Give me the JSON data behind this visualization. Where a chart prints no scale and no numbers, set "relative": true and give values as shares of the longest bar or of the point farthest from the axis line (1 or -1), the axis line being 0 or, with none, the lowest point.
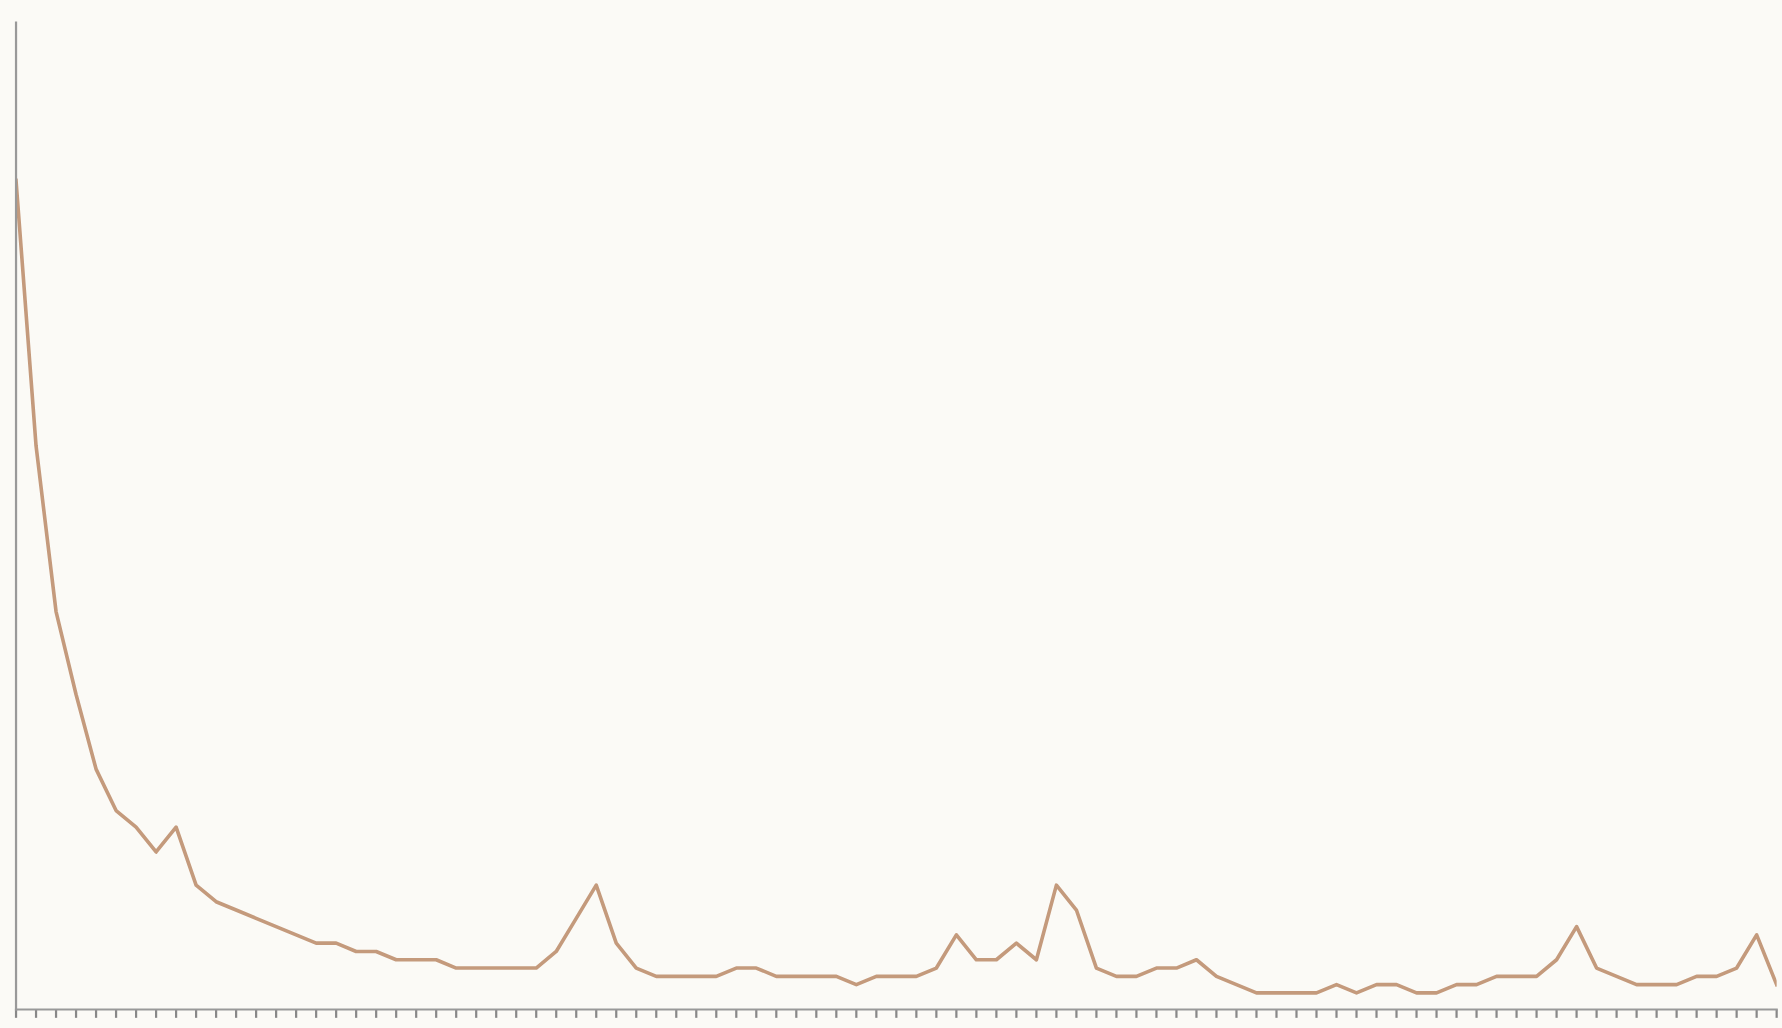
{
  "chart_data": {
    "type": "line",
    "relative": true,
    "color": "#c49a7c",
    "categories": [
      null,
      null,
      null,
      null,
      null,
      null,
      null,
      null,
      null,
      null,
      null,
      null,
      null,
      null,
      null,
      null,
      null,
      null,
      null,
      null,
      null,
      null,
      null,
      null,
      null,
      null,
      null,
      null,
      null,
      null,
      null,
      null,
      null,
      null,
      null,
      null,
      null,
      null,
      null,
      null,
      null,
      null,
      null,
      null,
      null,
      null,
      null,
      null,
      null,
      null,
      null,
      null,
      null,
      null,
      null,
      null,
      null,
      null,
      null,
      null,
      null,
      null,
      null,
      null,
      null,
      null,
      null,
      null,
      null,
      null,
      null,
      null,
      null,
      null,
      null,
      null,
      null,
      null,
      null,
      null,
      null,
      null,
      null,
      null,
      null,
      null,
      null,
      null,
      null
    ],
    "values": [
      1.0,
      0.68,
      0.48,
      0.38,
      0.29,
      0.24,
      0.22,
      0.19,
      0.22,
      0.15,
      0.13,
      0.12,
      0.11,
      0.1,
      0.09,
      0.08,
      0.08,
      0.07,
      0.07,
      0.06,
      0.06,
      0.06,
      0.05,
      0.05,
      0.05,
      0.05,
      0.05,
      0.07,
      0.11,
      0.15,
      0.08,
      0.05,
      0.04,
      0.04,
      0.04,
      0.04,
      0.05,
      0.05,
      0.04,
      0.04,
      0.04,
      0.04,
      0.03,
      0.04,
      0.04,
      0.04,
      0.05,
      0.09,
      0.06,
      0.06,
      0.08,
      0.06,
      0.15,
      0.12,
      0.05,
      0.04,
      0.04,
      0.05,
      0.05,
      0.06,
      0.04,
      0.03,
      0.02,
      0.02,
      0.02,
      0.02,
      0.03,
      0.02,
      0.03,
      0.03,
      0.02,
      0.02,
      0.03,
      0.03,
      0.04,
      0.04,
      0.04,
      0.06,
      0.1,
      0.05,
      0.04,
      0.03,
      0.03,
      0.03,
      0.04,
      0.04,
      0.05,
      0.09,
      0.03
    ]
  }
}
